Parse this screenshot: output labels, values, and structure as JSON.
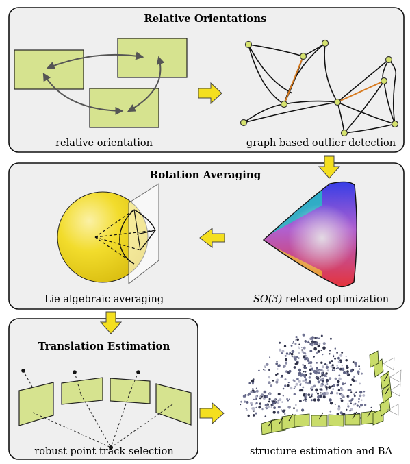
{
  "panels": {
    "relative": {
      "title": "Relative Orientations",
      "left_caption": "relative orientation",
      "right_caption": "graph based outlier detection"
    },
    "rotation": {
      "title": "Rotation Averaging",
      "left_caption": "Lie algebraic averaging",
      "right_caption_italic": "SO(3)",
      "right_caption_rest": " relaxed optimization"
    },
    "translation": {
      "title": "Translation Estimation",
      "left_caption": "robust point track selection",
      "right_caption": "structure estimation and BA"
    }
  },
  "colors": {
    "panel_fill": "#efefef",
    "camera_fill": "#d6e38f",
    "arrow_fill": "#f4df1f",
    "outlier_edge": "#d77a1f",
    "node_fill": "#d6e36f",
    "sphere": "#efd21e"
  },
  "icons": {
    "flow_arrow": "block-arrow-icon"
  }
}
